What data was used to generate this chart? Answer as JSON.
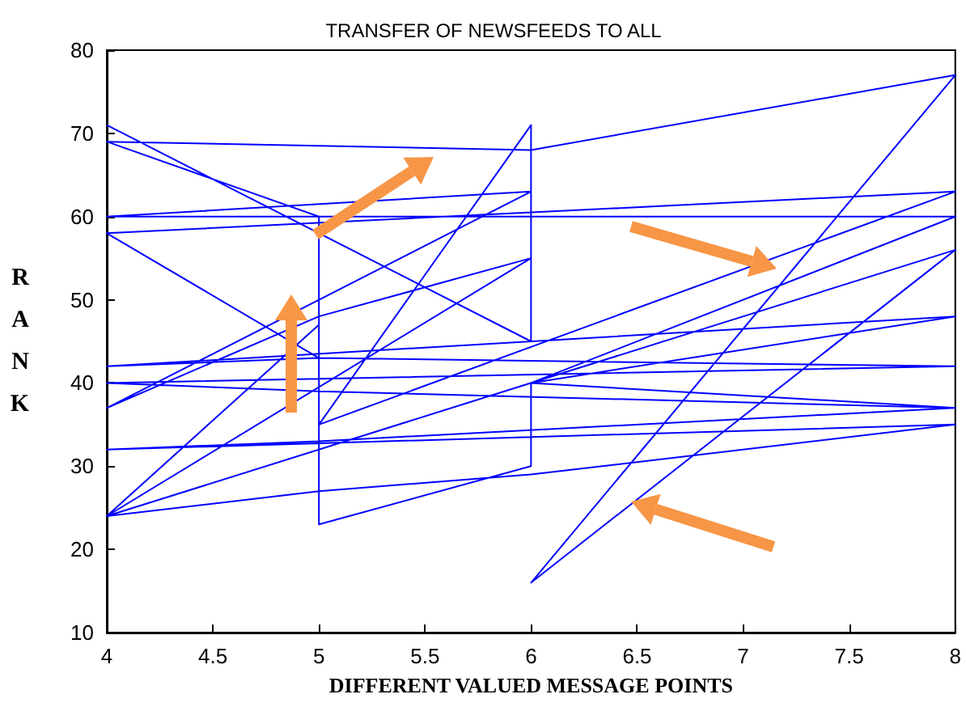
{
  "chart_data": {
    "type": "line",
    "title": "TRANSFER OF NEWSFEEDS TO ALL",
    "xlabel": "DIFFERENT VALUED MESSAGE POINTS",
    "ylabel": "RANK",
    "series": [
      {
        "color": "#0000ff",
        "x": [
          4,
          6,
          6,
          5,
          8,
          4,
          5,
          5,
          4,
          6,
          8,
          6,
          8,
          4,
          5,
          6,
          8,
          4,
          5,
          8,
          6,
          8,
          4,
          6,
          4,
          5,
          6,
          4,
          5,
          5,
          6,
          6,
          8,
          4,
          5,
          8,
          4,
          5,
          8
        ],
        "values": [
          71,
          45,
          71,
          35,
          63,
          58,
          43,
          60,
          69,
          68,
          77,
          16,
          56,
          24,
          27,
          29,
          35,
          32,
          33,
          37,
          40,
          60,
          60,
          63,
          37,
          48,
          55,
          24,
          47,
          23,
          30,
          40,
          48,
          42,
          43,
          42,
          40,
          39,
          37
        ]
      }
    ],
    "xlim": [
      4,
      8
    ],
    "xticks": [
      4,
      4.5,
      5,
      5.5,
      6,
      6.5,
      7,
      7.5,
      8
    ],
    "ylim": [
      10,
      80
    ],
    "yticks": [
      10,
      20,
      30,
      40,
      50,
      60,
      70,
      80
    ],
    "grid": false,
    "marker": "none",
    "line_style": "solid"
  }
}
